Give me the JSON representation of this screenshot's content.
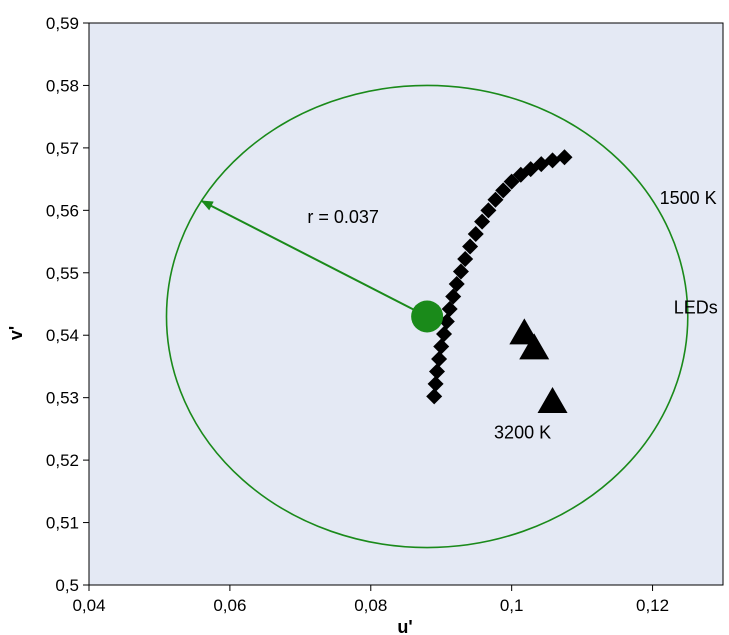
{
  "chart_data": {
    "type": "scatter",
    "xlabel": "u'",
    "ylabel": "v'",
    "xlim": [
      0.04,
      0.13
    ],
    "ylim": [
      0.5,
      0.59
    ],
    "x_ticks": [
      "0,04",
      "0,06",
      "0,08",
      "0,1",
      "0,12"
    ],
    "x_tick_values": [
      0.04,
      0.06,
      0.08,
      0.1,
      0.12
    ],
    "y_ticks": [
      "0,5",
      "0,51",
      "0,52",
      "0,53",
      "0,54",
      "0,55",
      "0,56",
      "0,57",
      "0,58",
      "0,59"
    ],
    "y_tick_values": [
      0.5,
      0.51,
      0.52,
      0.53,
      0.54,
      0.55,
      0.56,
      0.57,
      0.58,
      0.59
    ],
    "grid": false,
    "background_color": "#e4e9f4",
    "series": [
      {
        "name": "",
        "marker": "diamond",
        "color": "#000000",
        "points": [
          [
            0.089,
            0.5302
          ],
          [
            0.0892,
            0.5322
          ],
          [
            0.0894,
            0.5342
          ],
          [
            0.0897,
            0.5362
          ],
          [
            0.09,
            0.5382
          ],
          [
            0.0904,
            0.5402
          ],
          [
            0.0908,
            0.5422
          ],
          [
            0.0912,
            0.5442
          ],
          [
            0.0917,
            0.5462
          ],
          [
            0.0922,
            0.5482
          ],
          [
            0.0928,
            0.5502
          ],
          [
            0.0934,
            0.5522
          ],
          [
            0.0941,
            0.5542
          ],
          [
            0.0949,
            0.5562
          ],
          [
            0.0958,
            0.5582
          ],
          [
            0.0967,
            0.56
          ],
          [
            0.0977,
            0.5617
          ],
          [
            0.0988,
            0.5632
          ],
          [
            0.1,
            0.5646
          ],
          [
            0.1013,
            0.5657
          ],
          [
            0.1027,
            0.5666
          ],
          [
            0.1042,
            0.5674
          ],
          [
            0.1058,
            0.568
          ],
          [
            0.1075,
            0.5685
          ]
        ]
      },
      {
        "name": "",
        "marker": "triangle",
        "color": "#000000",
        "points": [
          [
            0.1018,
            0.5402
          ],
          [
            0.1032,
            0.5378
          ],
          [
            0.1058,
            0.5292
          ]
        ]
      },
      {
        "name": "",
        "marker": "circle",
        "color": "#1a8a1a",
        "points": [
          [
            0.088,
            0.543
          ]
        ]
      }
    ],
    "circle": {
      "center": [
        0.088,
        0.543
      ],
      "radius": 0.037,
      "color": "#1a8a1a"
    },
    "arrow": {
      "from": [
        0.088,
        0.543
      ],
      "to": [
        0.056,
        0.5615
      ],
      "color": "#1a8a1a"
    },
    "annotations": [
      {
        "text": "r = 0.037",
        "at": [
          0.071,
          0.558
        ]
      },
      {
        "text": "1500 K",
        "at": [
          0.121,
          0.561
        ]
      },
      {
        "text": "LEDs",
        "at": [
          0.123,
          0.5435
        ]
      },
      {
        "text": "3200 K",
        "at": [
          0.0975,
          0.5235
        ]
      }
    ]
  }
}
